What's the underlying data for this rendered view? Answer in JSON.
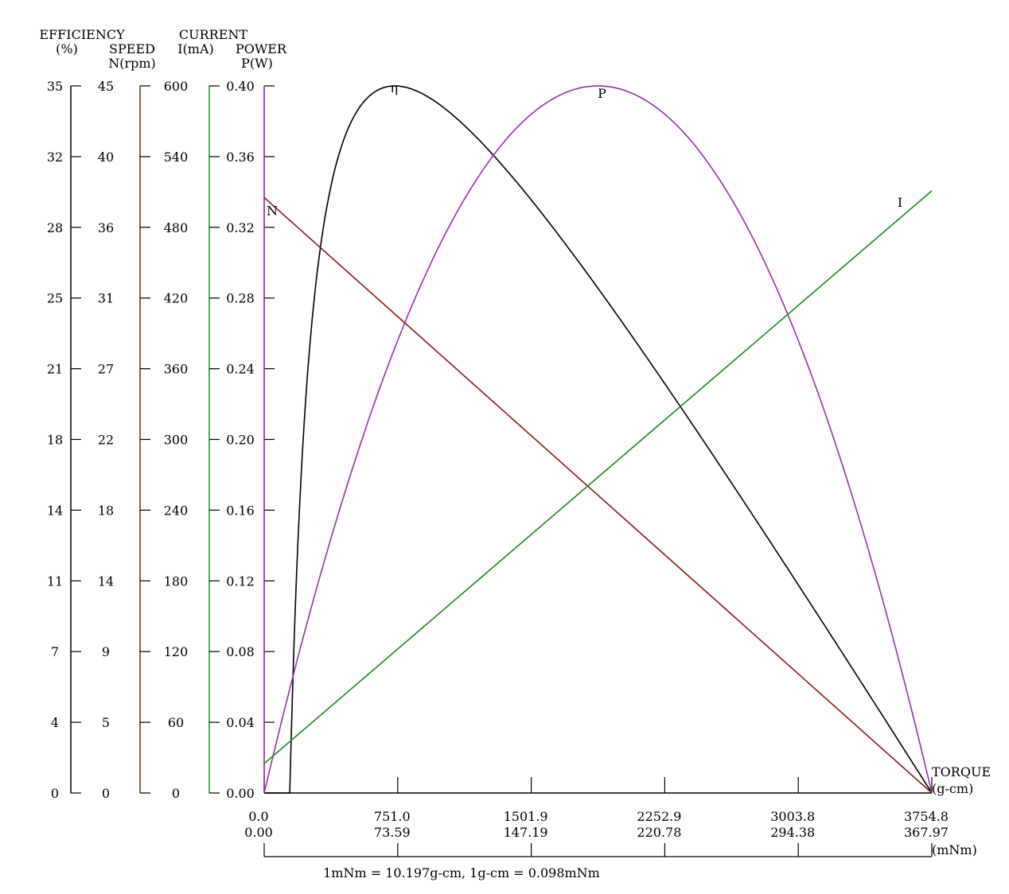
{
  "chart_data": {
    "type": "line",
    "axes": {
      "efficiency": {
        "title_lines": [
          "EFFICIENCY",
          "(%)"
        ],
        "ticks": [
          "0",
          "4",
          "7",
          "11",
          "14",
          "18",
          "21",
          "25",
          "28",
          "32",
          "35"
        ],
        "min": 0,
        "max": 35,
        "color": "#000000"
      },
      "speed": {
        "title_lines": [
          "SPEED",
          "N(rpm)"
        ],
        "ticks": [
          "0",
          "5",
          "9",
          "14",
          "18",
          "22",
          "27",
          "31",
          "36",
          "40",
          "45"
        ],
        "min": 0,
        "max": 45,
        "color": "#8b1a1a"
      },
      "current": {
        "title_lines": [
          "CURRENT",
          "I(mA)"
        ],
        "ticks": [
          "0",
          "60",
          "120",
          "180",
          "240",
          "300",
          "360",
          "420",
          "480",
          "540",
          "600"
        ],
        "min": 0,
        "max": 600,
        "color": "#1a8c1a"
      },
      "power": {
        "title_lines": [
          "POWER",
          "P(W)"
        ],
        "ticks": [
          "0.00",
          "0.04",
          "0.08",
          "0.12",
          "0.16",
          "0.20",
          "0.24",
          "0.28",
          "0.32",
          "0.36",
          "0.40"
        ],
        "min": 0,
        "max": 0.4,
        "color": "#9b30b0"
      }
    },
    "x_axis": {
      "label_gcm_lines": [
        "TORQUE",
        "(g-cm)"
      ],
      "label_mnm": "(mNm)",
      "ticks_gcm": [
        "0.0",
        "751.0",
        "1501.9",
        "2252.9",
        "3003.8",
        "3754.8"
      ],
      "ticks_mnm": [
        "0.00",
        "73.59",
        "147.19",
        "220.78",
        "294.38",
        "367.97"
      ],
      "range_gcm": [
        0,
        3754.8
      ]
    },
    "note": "1mNm = 10.197g-cm, 1g-cm = 0.098mNm",
    "series": [
      {
        "name": "η",
        "axis": "efficiency",
        "color": "#000000",
        "kind": "efficiency",
        "params": {
          "peak": 35,
          "t_peak": 735
        }
      },
      {
        "name": "P",
        "axis": "power",
        "color": "#9b30b0",
        "kind": "power",
        "params": {
          "peak": 0.4,
          "t_stall": 3754.8
        }
      },
      {
        "name": "N",
        "axis": "speed",
        "color": "#8b1a1a",
        "kind": "linear",
        "values": [
          [
            0,
            37.9
          ],
          [
            3754.8,
            0
          ]
        ]
      },
      {
        "name": "I",
        "axis": "current",
        "color": "#1a8c1a",
        "kind": "linear",
        "values": [
          [
            0,
            25
          ],
          [
            3754.8,
            511
          ]
        ]
      }
    ]
  }
}
